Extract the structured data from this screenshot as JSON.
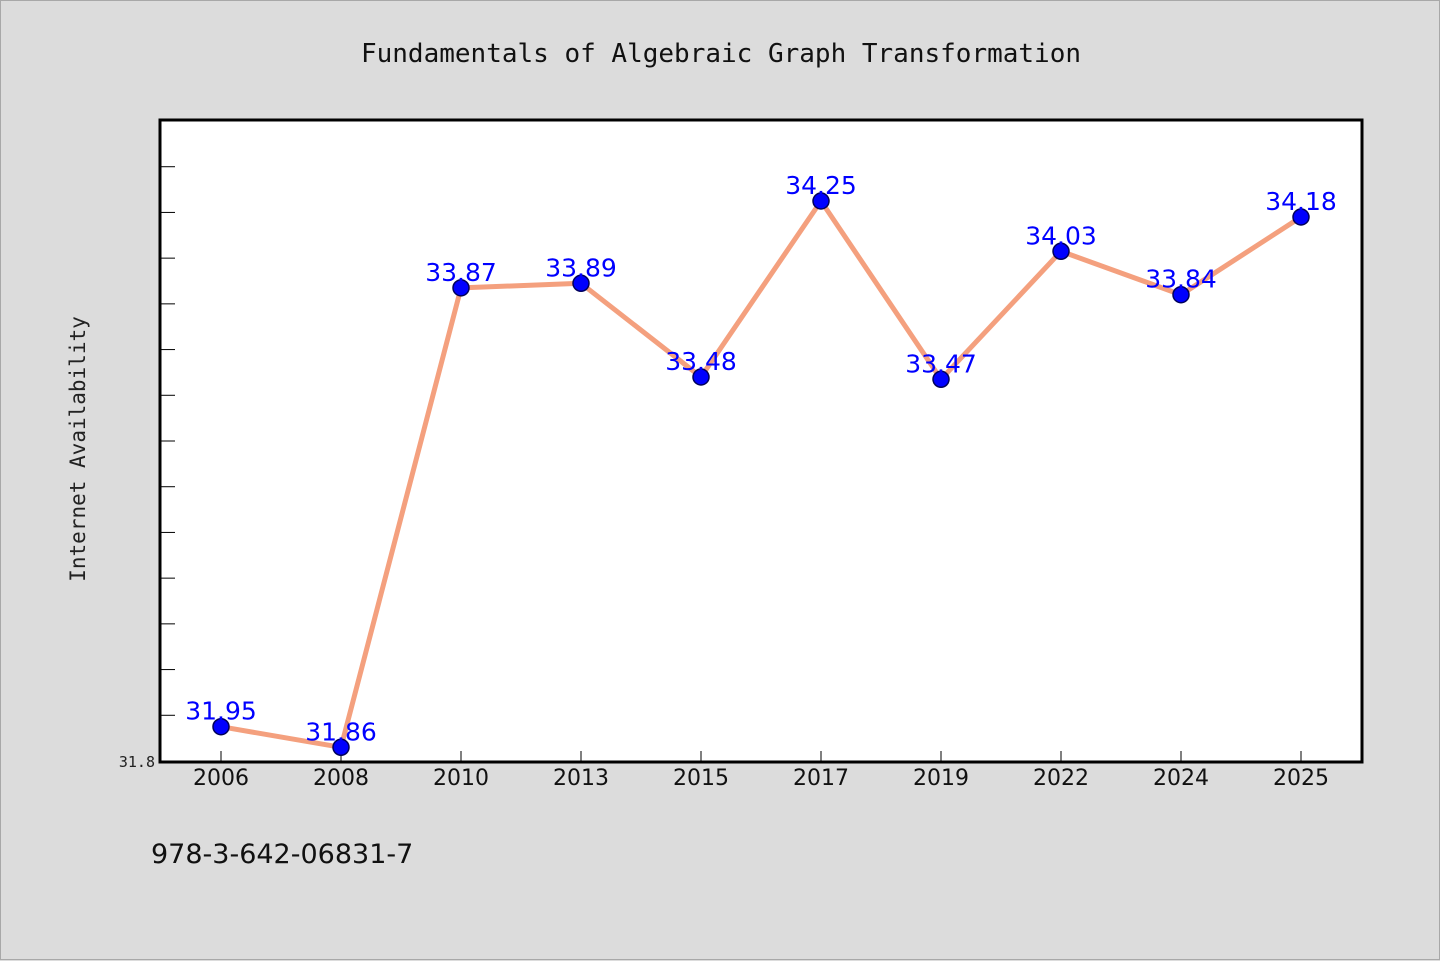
{
  "chart_data": {
    "type": "line",
    "title": "Fundamentals of Algebraic Graph Transformation",
    "ylabel": "Internet Availability",
    "xlabel": "",
    "categories": [
      "2006",
      "2008",
      "2010",
      "2013",
      "2015",
      "2017",
      "2019",
      "2022",
      "2024",
      "2025"
    ],
    "series": [
      {
        "values": [
          31.95,
          31.86,
          33.87,
          33.89,
          33.48,
          34.25,
          33.47,
          34.03,
          33.84,
          34.18
        ],
        "labels": [
          "31.95",
          "31.86",
          "33.87",
          "33.89",
          "33.48",
          "34.25",
          "33.47",
          "34.03",
          "33.84",
          "34.18"
        ],
        "line_color": "#f4a07e",
        "marker_color": "#0000ff"
      }
    ],
    "ylim": [
      31.8,
      34.6
    ],
    "y_tick_labels": [
      "31.8"
    ],
    "y_minor_step": 0.2,
    "grid": false,
    "legend": "none"
  },
  "footer": {
    "isbn": "978-3-642-06831-7"
  },
  "colors": {
    "background": "#dcdcdc",
    "plot_background": "#ffffff",
    "axis": "#000000"
  }
}
